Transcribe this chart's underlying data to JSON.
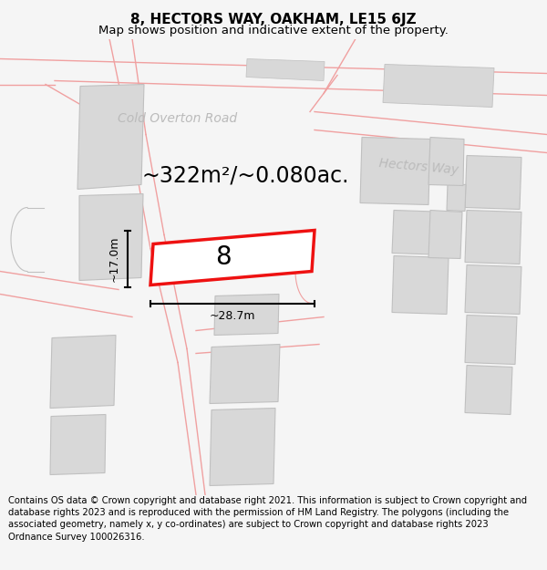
{
  "title_line1": "8, HECTORS WAY, OAKHAM, LE15 6JZ",
  "title_line2": "Map shows position and indicative extent of the property.",
  "area_text": "~322m²/~0.080ac.",
  "dim_width": "~28.7m",
  "dim_height": "~17.0m",
  "property_number": "8",
  "road_label1": "Cold Overton Road",
  "road_label2": "Hectors Way",
  "footer_text": "Contains OS data © Crown copyright and database right 2021. This information is subject to Crown copyright and database rights 2023 and is reproduced with the permission of HM Land Registry. The polygons (including the associated geometry, namely x, y co-ordinates) are subject to Crown copyright and database rights 2023 Ordnance Survey 100026316.",
  "bg_color": "#f5f5f5",
  "map_bg": "#ffffff",
  "building_fill": "#d8d8d8",
  "highlight_color": "#ee1111",
  "highlight_fill": "#ffffff",
  "road_line_color": "#f0a0a0",
  "map_line_color": "#c0c0c0",
  "title_fontsize": 11,
  "subtitle_fontsize": 9.5,
  "area_fontsize": 17,
  "dim_fontsize": 9,
  "footer_fontsize": 7.2,
  "road_label_fontsize": 10,
  "number_fontsize": 20
}
